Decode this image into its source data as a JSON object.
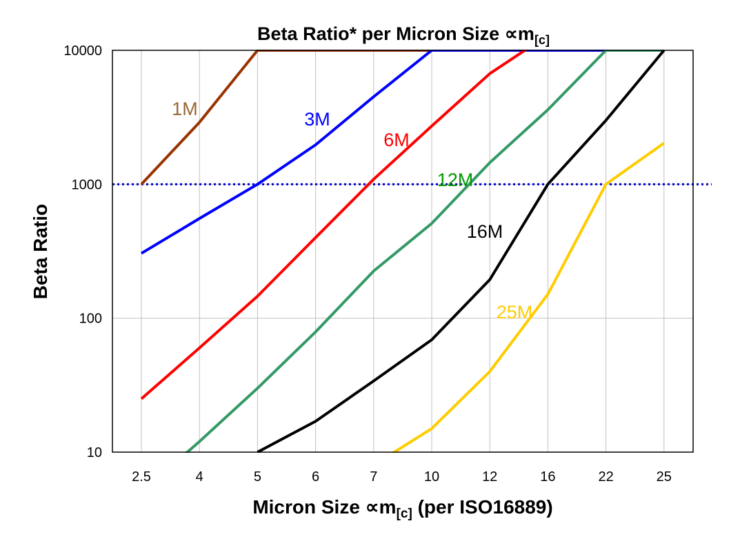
{
  "chart_data": {
    "type": "line",
    "title": "Beta Ratio* per Micron Size ∝m",
    "title_sub": "[c]",
    "xlabel": "Micron Size ∝m",
    "xlabel_sub": "[c]",
    "xlabel_suffix": " (per ISO16889)",
    "ylabel": "Beta Ratio",
    "y_scale": "log",
    "ylim": [
      10,
      10000
    ],
    "y_ticks": [
      "10",
      "100",
      "1000",
      "10000"
    ],
    "categories": [
      "2.5",
      "4",
      "5",
      "6",
      "7",
      "10",
      "12",
      "16",
      "22",
      "25"
    ],
    "grid": true,
    "reference_line": {
      "value": 1000,
      "color": "#0000cc",
      "style": "dotted"
    },
    "series": [
      {
        "name": "1M",
        "color": "#993300",
        "label_color": "#996633",
        "values": [
          1000,
          2900,
          10000,
          10000,
          10000,
          10000,
          10000,
          10000,
          10000,
          10000
        ]
      },
      {
        "name": "3M",
        "color": "#0000ff",
        "label_color": "#0000ff",
        "values": [
          305,
          555,
          1000,
          1970,
          4500,
          10000,
          10000,
          10000,
          10000,
          10000
        ]
      },
      {
        "name": "6M",
        "color": "#ff0000",
        "label_color": "#ff0000",
        "values": [
          25,
          60,
          146,
          400,
          1090,
          2720,
          6700,
          13000,
          13000,
          13000
        ]
      },
      {
        "name": "12M",
        "color": "#339966",
        "label_color": "#009900",
        "values": [
          5,
          12,
          30,
          79,
          225,
          510,
          1450,
          3600,
          10000,
          10000
        ]
      },
      {
        "name": "16M",
        "color": "#000000",
        "label_color": "#000000",
        "values": [
          null,
          null,
          10,
          17,
          34,
          69,
          194,
          1000,
          3000,
          10000
        ]
      },
      {
        "name": "25M",
        "color": "#ffcc00",
        "label_color": "#ffcc00",
        "values": [
          null,
          null,
          null,
          null,
          8,
          15,
          40,
          151,
          1000,
          2030
        ]
      }
    ]
  }
}
